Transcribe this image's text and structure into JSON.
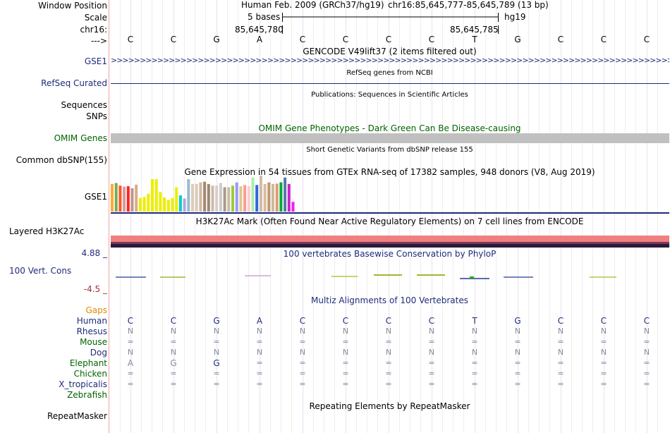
{
  "header": {
    "window_position_label": "Window Position",
    "scale_label": "Scale",
    "chr_label": "chr16:",
    "strand_label": "--->",
    "assembly": "Human Feb. 2009 (GRCh37/hg19)",
    "position": "chr16:85,645,777-85,645,789 (13 bp)",
    "scale_text": "5 bases",
    "scale_db": "hg19",
    "coord_left": "85,645,780",
    "coord_right": "85,645,785"
  },
  "sequence": [
    "C",
    "C",
    "G",
    "A",
    "C",
    "C",
    "C",
    "C",
    "T",
    "G",
    "C",
    "C",
    "C"
  ],
  "tracks": {
    "gencode": {
      "title": "GENCODE V49lift37 (2 items filtered out)",
      "label": "GSE1"
    },
    "refseq": {
      "title": "RefSeq genes from NCBI",
      "label": "RefSeq Curated"
    },
    "publications": {
      "title": "Publications: Sequences in Scientific Articles",
      "label_a": "Sequences",
      "label_b": "SNPs"
    },
    "omim": {
      "title": "OMIM Gene Phenotypes - Dark Green Can Be Disease-causing",
      "label": "OMIM Genes"
    },
    "dbsnp": {
      "title": "Short Genetic Variants from dbSNP release 155",
      "label": "Common dbSNP(155)"
    },
    "gtex": {
      "title": "Gene Expression in 54 tissues from GTEx RNA-seq of 17382 samples, 948 donors (V8, Aug 2019)",
      "label": "GSE1"
    },
    "h3k27ac": {
      "title": "H3K27Ac Mark (Often Found Near Active Regulatory Elements) on 7 cell lines from ENCODE",
      "label": "Layered H3K27Ac"
    },
    "conservation": {
      "title": "100 vertebrates Basewise Conservation by PhyloP",
      "label": "100 Vert. Cons",
      "max": "4.88 _",
      "min": "-4.5 _"
    },
    "multiz": {
      "title": "Multiz Alignments of 100 Vertebrates",
      "gaps_label": "Gaps",
      "species": [
        {
          "name": "Human",
          "row": [
            "C",
            "C",
            "G",
            "A",
            "C",
            "C",
            "C",
            "C",
            "T",
            "G",
            "C",
            "C",
            "C"
          ]
        },
        {
          "name": "Rhesus",
          "row": [
            "N",
            "N",
            "N",
            "N",
            "N",
            "N",
            "N",
            "N",
            "N",
            "N",
            "N",
            "N",
            "N"
          ]
        },
        {
          "name": "Mouse",
          "row": [
            "=",
            "=",
            "=",
            "=",
            "=",
            "=",
            "=",
            "=",
            "=",
            "=",
            "=",
            "=",
            "="
          ]
        },
        {
          "name": "Dog",
          "row": [
            "N",
            "N",
            "N",
            "N",
            "N",
            "N",
            "N",
            "N",
            "N",
            "N",
            "N",
            "N",
            "N"
          ]
        },
        {
          "name": "Elephant",
          "row": [
            "A",
            "G",
            "G",
            "=",
            "=",
            "=",
            "=",
            "=",
            "=",
            "=",
            "=",
            "=",
            "="
          ]
        },
        {
          "name": "Chicken",
          "row": [
            "=",
            "=",
            "=",
            "=",
            "=",
            "=",
            "=",
            "=",
            "=",
            "=",
            "=",
            "=",
            "="
          ]
        },
        {
          "name": "X_tropicalis",
          "row": [
            "=",
            "=",
            "=",
            "=",
            "=",
            "=",
            "=",
            "=",
            "=",
            "=",
            "=",
            "=",
            "="
          ]
        },
        {
          "name": "Zebrafish",
          "row": [
            "",
            "",
            "",
            "",
            "",
            "",
            "",
            "",
            "",
            "",
            "",
            "",
            ""
          ]
        }
      ]
    },
    "repeatmasker": {
      "title": "Repeating Elements by RepeatMasker",
      "label": "RepeatMasker"
    }
  },
  "gtex_expression": {
    "values": [
      0.85,
      0.88,
      0.8,
      0.77,
      0.78,
      0.72,
      0.83,
      0.42,
      0.45,
      0.55,
      1.0,
      1.0,
      0.6,
      0.44,
      0.36,
      0.42,
      0.75,
      0.5,
      0.4,
      1.0,
      0.85,
      0.85,
      0.9,
      0.92,
      0.85,
      0.8,
      0.8,
      0.88,
      0.75,
      0.75,
      0.8,
      0.9,
      0.78,
      0.82,
      0.78,
      1.05,
      0.82,
      1.1,
      0.85,
      0.9,
      0.85,
      0.86,
      0.9,
      1.05,
      0.85,
      0.3
    ],
    "colors": [
      "#ffaa33",
      "#77aa55",
      "#ff5522",
      "#dd9999",
      "#ff2222",
      "#bb9988",
      "#ddaa88",
      "#eeee00",
      "#eeee00",
      "#eeee00",
      "#eeee00",
      "#eeee00",
      "#eeee00",
      "#eeee00",
      "#eeee00",
      "#eeee00",
      "#eeee00",
      "#00cccc",
      "#aaaadd",
      "#99bbcc",
      "#ddccbb",
      "#ddccbb",
      "#ccbbaa",
      "#aa8866",
      "#998877",
      "#ccbbaa",
      "#ddcccc",
      "#cccccc",
      "#aa9988",
      "#ccbbaa",
      "#99cc33",
      "#9999ff",
      "#ddcc88",
      "#ff9999",
      "#ffcccc",
      "#aaeeaa",
      "#3366dd",
      "#ccbbaa",
      "#ddbb99",
      "#bb9977",
      "#ccbb99",
      "#dd9977",
      "#00aa33",
      "#5577aa",
      "#cc22cc",
      "#ee22ee"
    ]
  },
  "colors": {
    "label_navy": "#1f2b7a",
    "omim_bar": "#c0c0c0",
    "h3k27ac_top": "#f08080",
    "h3k27ac_bottom": "#2a1a3a",
    "separator": "#f4a3a3"
  }
}
